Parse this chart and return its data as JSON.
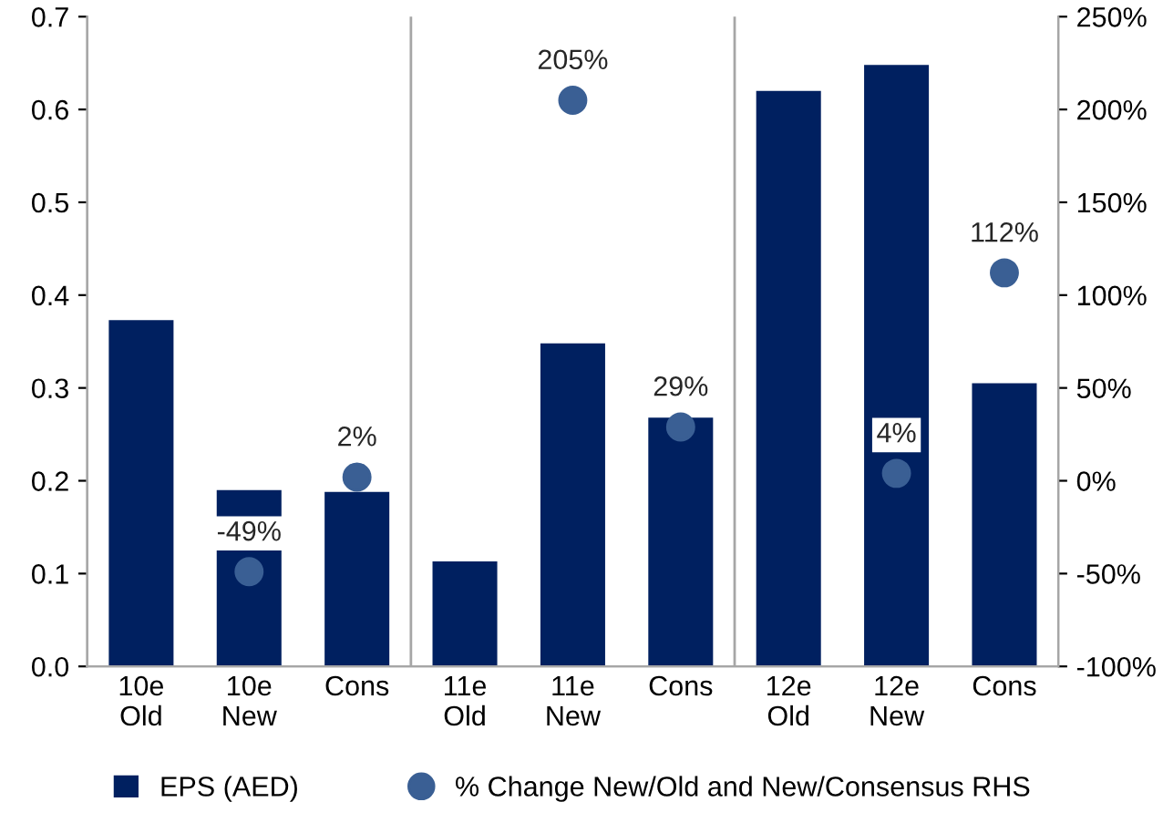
{
  "chart_data": {
    "type": "bar",
    "categories": [
      "10e\nOld",
      "10e\nNew",
      "Cons",
      "11e\nOld",
      "11e\nNew",
      "Cons",
      "12e\nOld",
      "12e\nNew",
      "Cons"
    ],
    "series": [
      {
        "name": "EPS (AED)",
        "color": "#002060",
        "values": [
          0.373,
          0.19,
          0.188,
          0.113,
          0.348,
          0.268,
          0.62,
          0.648,
          0.305
        ]
      },
      {
        "name": "% Change New/Old and New/Consensus RHS",
        "type": "scatter",
        "axis": "y2",
        "color": "#3a5f94",
        "marker": "circle",
        "values": [
          null,
          -49,
          2,
          null,
          205,
          29,
          null,
          4,
          112
        ],
        "value_labels": [
          null,
          "-49%",
          "2%",
          null,
          "205%",
          "29%",
          null,
          "4%",
          "112%"
        ]
      }
    ],
    "ylim": [
      0,
      0.7
    ],
    "yticks": [
      {
        "value": 0,
        "label": "0.0"
      },
      0.1,
      0.2,
      0.3,
      0.4,
      0.5,
      0.6,
      0.7
    ],
    "y2lim": [
      -100,
      250
    ],
    "y2ticks": [
      {
        "value": -100,
        "label": "-100%"
      },
      {
        "value": -50,
        "label": "-50%"
      },
      {
        "value": 0,
        "label": "0%"
      },
      {
        "value": 50,
        "label": "50%"
      },
      {
        "value": 100,
        "label": "100%"
      },
      {
        "value": 150,
        "label": "150%"
      },
      {
        "value": 200,
        "label": "200%"
      },
      {
        "value": 250,
        "label": "250%"
      }
    ],
    "grid": false,
    "legend": "bottom"
  }
}
